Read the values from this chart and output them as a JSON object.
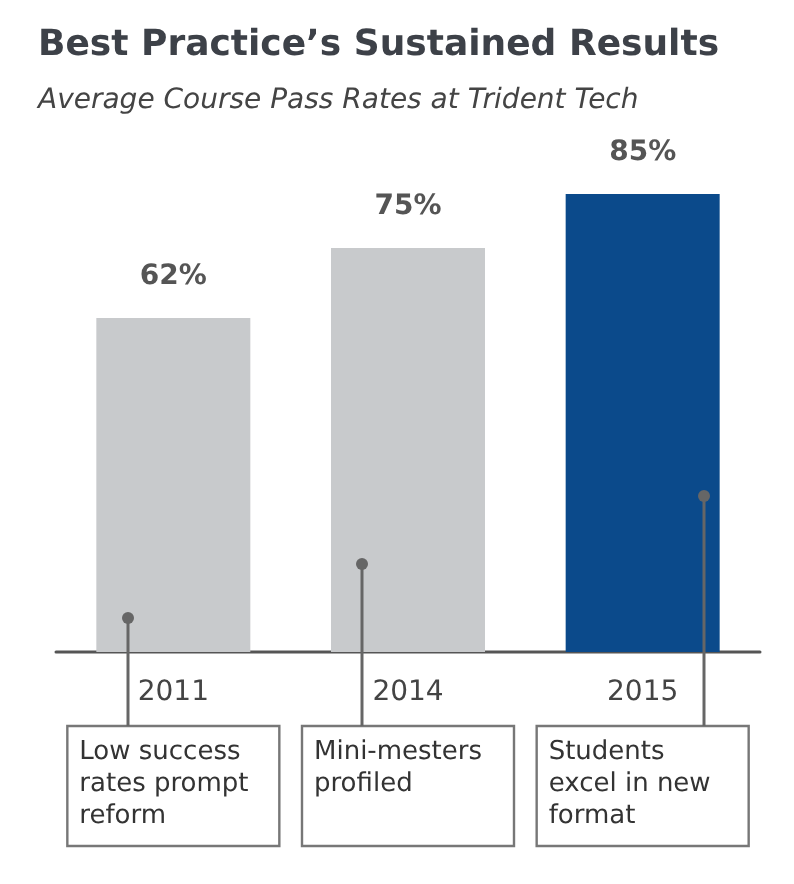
{
  "chart_data": {
    "type": "bar",
    "title": "Best Practice’s Sustained Results",
    "subtitle": "Average Course Pass Rates at Trident Tech",
    "categories": [
      "2011",
      "2014",
      "2015"
    ],
    "values": [
      62,
      75,
      85
    ],
    "value_labels": [
      "62%",
      "75%",
      "85%"
    ],
    "colors": [
      "#c8cacc",
      "#c8cacc",
      "#0b4a8b"
    ],
    "annotations": [
      "Low success rates prompt reform",
      "Mini-mesters profiled",
      "Students excel in new format"
    ]
  }
}
